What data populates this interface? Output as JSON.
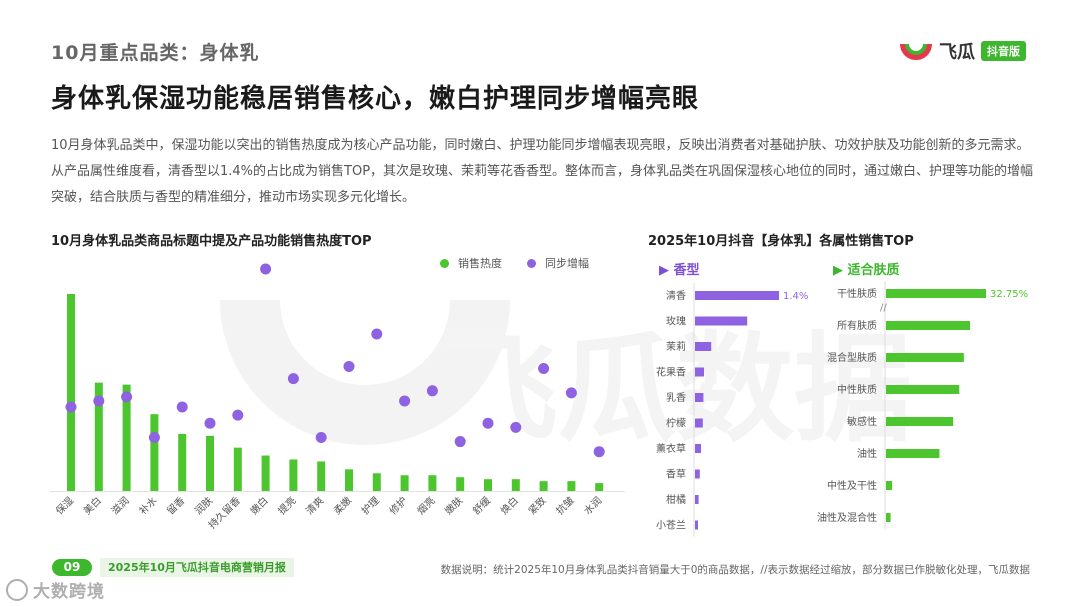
{
  "header": {
    "kicker": "10月重点品类：身体乳",
    "headline": "身体乳保湿功能稳居销售核心，嫩白护理同步增幅亮眼",
    "intro": "10月身体乳品类中，保湿功能以突出的销售热度成为核心产品功能，同时嫩白、护理功能同步增幅表现亮眼，反映出消费者对基础护肤、功效护肤及功能创新的多元需求。从产品属性维度看，清香型以1.4%的占比成为销售TOP，其次是玫瑰、茉莉等花香香型。整体而言，身体乳品类在巩固保湿核心地位的同时，通过嫩白、护理等功能的增幅突破，结合肤质与香型的精准细分，推动市场实现多元化增长。"
  },
  "brand": {
    "name": "飞瓜",
    "badge": "抖音版",
    "watermark": "飞瓜数据",
    "logo_icon": "feigua-logo-icon"
  },
  "colors": {
    "green": "#4cc52e",
    "purple": "#8e62e0",
    "purple_dark": "#7b4fd6"
  },
  "chart_data": [
    {
      "type": "bar",
      "title": "10月身体乳品类商品标题中提及产品功能销售热度TOP",
      "legend_position": "top-right",
      "categories": [
        "保湿",
        "美白",
        "滋润",
        "补水",
        "留香",
        "润肤",
        "持久留香",
        "嫩白",
        "提亮",
        "清爽",
        "柔嫩",
        "护理",
        "修护",
        "烟亮",
        "嫩肤",
        "舒缓",
        "焕白",
        "紧致",
        "抗皱",
        "水润"
      ],
      "series": [
        {
          "name": "销售热度",
          "kind": "bar",
          "color": "#4cc52e",
          "values": [
            100,
            55,
            54,
            39,
            29,
            28,
            22,
            18,
            16,
            15,
            11,
            9,
            8,
            8,
            7,
            6,
            6,
            5,
            5,
            4
          ]
        },
        {
          "name": "同步增幅",
          "kind": "scatter",
          "color": "#8e62e0",
          "values": [
            32,
            35,
            37,
            17,
            32,
            24,
            28,
            100,
            46,
            17,
            52,
            68,
            35,
            40,
            15,
            24,
            22,
            51,
            39,
            10
          ]
        }
      ]
    },
    {
      "type": "bar",
      "orientation": "horizontal",
      "title": "2025年10月抖音【身体乳】各属性销售TOP",
      "panel": "香型",
      "categories": [
        "清香",
        "玫瑰",
        "茉莉",
        "花果香",
        "乳香",
        "柠檬",
        "薰衣草",
        "香草",
        "柑橘",
        "小苍兰"
      ],
      "values": [
        1.4,
        0.87,
        0.27,
        0.15,
        0.14,
        0.13,
        0.1,
        0.08,
        0.06,
        0.05
      ],
      "value_labels": [
        "1.4%",
        "",
        "",
        "",
        "",
        "",
        "",
        "",
        "",
        ""
      ],
      "color": "#8e62e0",
      "axis_break": false
    },
    {
      "type": "bar",
      "orientation": "horizontal",
      "title": "2025年10月抖音【身体乳】各属性销售TOP",
      "panel": "适合肤质",
      "categories": [
        "干性肤质",
        "所有肤质",
        "混合型肤质",
        "中性肤质",
        "敏感性",
        "油性",
        "中性及干性",
        "油性及混合性"
      ],
      "values": [
        32.75,
        27.5,
        25.5,
        24.0,
        22.0,
        17.5,
        2.0,
        1.5
      ],
      "value_labels": [
        "32.75%",
        "",
        "",
        "",
        "",
        "",
        "",
        ""
      ],
      "color": "#4cc52e",
      "axis_break": true
    }
  ],
  "footer": {
    "page_number": "09",
    "report_name": "2025年10月飞瓜抖音电商营销月报",
    "note": "数据说明：统计2025年10月身体乳品类抖音销量大于0的商品数据，//表示数据经过缩放，部分数据已作脱敏化处理，飞瓜数据",
    "corner_watermark": "大数跨境"
  }
}
